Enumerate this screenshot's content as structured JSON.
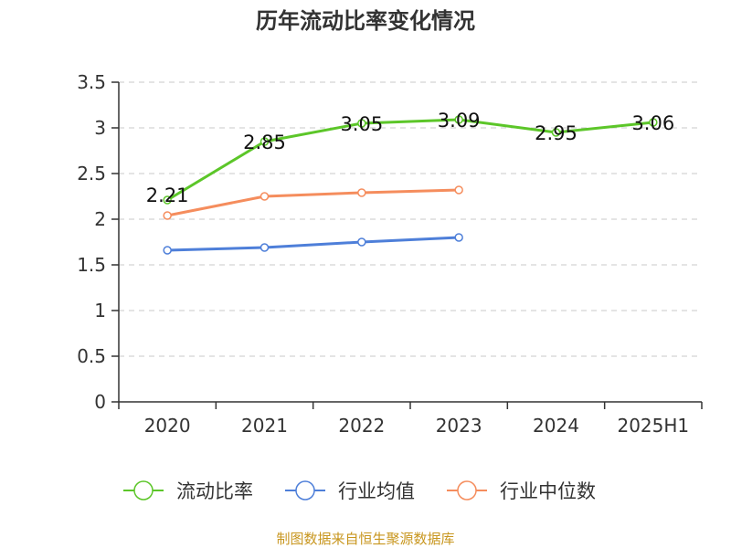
{
  "chart_data": {
    "type": "line",
    "title": "历年流动比率变化情况",
    "categories": [
      "2020",
      "2021",
      "2022",
      "2023",
      "2024",
      "2025H1"
    ],
    "ylim": [
      0,
      3.5
    ],
    "yticks": [
      "0",
      "0.5",
      "1",
      "1.5",
      "2",
      "2.5",
      "3",
      "3.5"
    ],
    "grid": true,
    "legend_position": "bottom",
    "series": [
      {
        "name": "流动比率",
        "color": "#5cc629",
        "values": [
          2.21,
          2.85,
          3.05,
          3.09,
          2.95,
          3.06
        ],
        "data_labels": [
          "2.21",
          "2.85",
          "3.05",
          "3.09",
          "2.95",
          "3.06"
        ]
      },
      {
        "name": "行业均值",
        "color": "#4e7fd9",
        "values": [
          1.66,
          1.69,
          1.75,
          1.8,
          null,
          null
        ]
      },
      {
        "name": "行业中位数",
        "color": "#f58d5d",
        "values": [
          2.04,
          2.25,
          2.29,
          2.32,
          null,
          null
        ]
      }
    ]
  },
  "source": {
    "text": "制图数据来自恒生聚源数据库",
    "color": "#c8961e"
  }
}
